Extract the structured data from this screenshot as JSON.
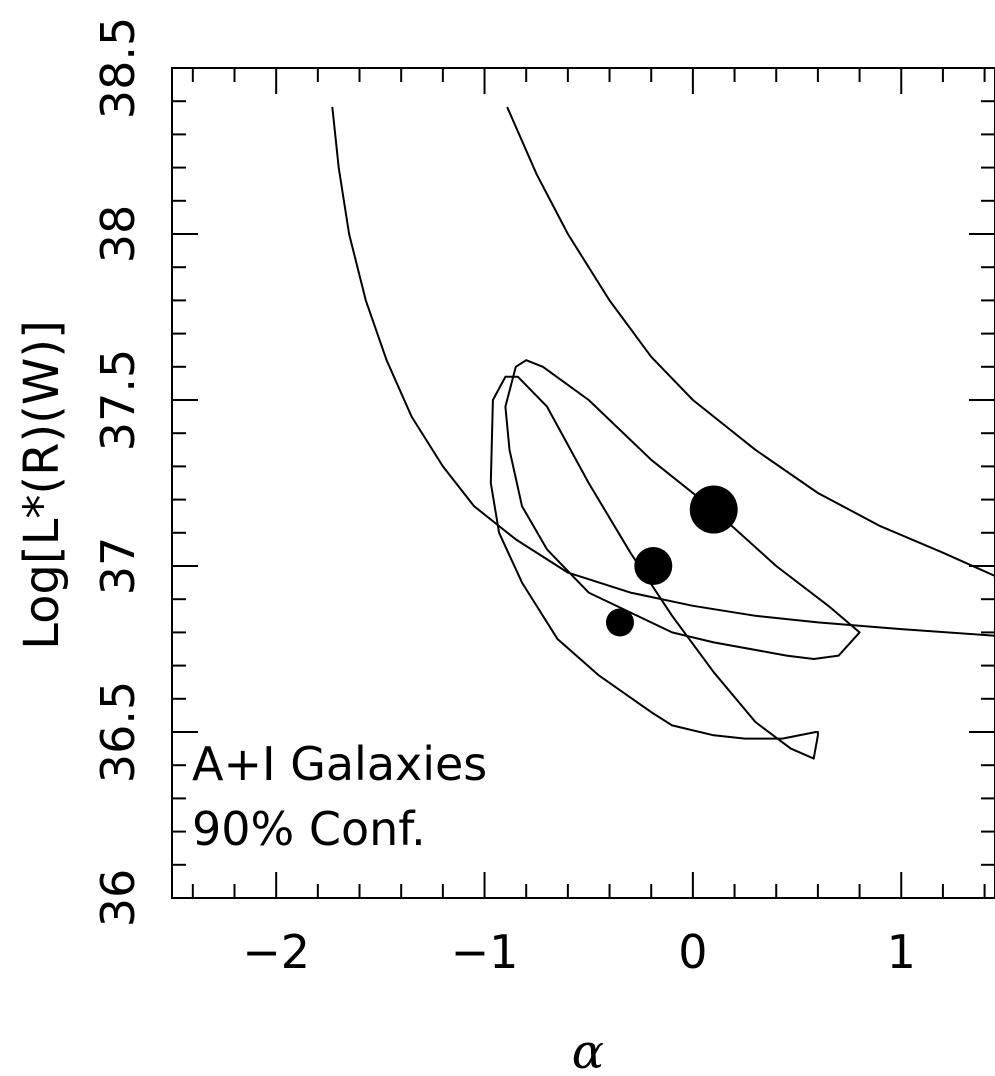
{
  "chart_data": {
    "type": "scatter",
    "title": "",
    "xlabel": "α",
    "ylabel": "Log[L*(R)(W)]",
    "xlim": [
      -2.5,
      1.45
    ],
    "ylim": [
      36.0,
      38.5
    ],
    "x_ticks": [
      "−2",
      "−1",
      "0",
      "1"
    ],
    "y_ticks": [
      "36",
      "36.5",
      "37",
      "37.5",
      "38",
      "38.5"
    ],
    "annotations": [
      "A+I Galaxies",
      "90% Conf."
    ],
    "points": [
      {
        "x": 0.1,
        "y": 37.17,
        "size": "large"
      },
      {
        "x": -0.19,
        "y": 37.0,
        "size": "medium"
      },
      {
        "x": -0.35,
        "y": 36.83,
        "size": "small"
      }
    ],
    "contours": [
      {
        "points": [
          [
            -1.73,
            38.38
          ],
          [
            -1.7,
            38.2
          ],
          [
            -1.65,
            38.0
          ],
          [
            -1.57,
            37.8
          ],
          [
            -1.47,
            37.62
          ],
          [
            -1.35,
            37.45
          ],
          [
            -1.2,
            37.3
          ],
          [
            -1.05,
            37.18
          ],
          [
            -0.85,
            37.08
          ],
          [
            -0.6,
            36.98
          ],
          [
            -0.3,
            36.92
          ],
          [
            0,
            36.88
          ],
          [
            0.3,
            36.85
          ],
          [
            0.6,
            36.83
          ],
          [
            1.0,
            36.81
          ],
          [
            1.45,
            36.79
          ]
        ]
      },
      {
        "points": [
          [
            -0.89,
            38.38
          ],
          [
            -0.75,
            38.18
          ],
          [
            -0.6,
            38.0
          ],
          [
            -0.4,
            37.8
          ],
          [
            -0.2,
            37.63
          ],
          [
            0.0,
            37.5
          ],
          [
            0.3,
            37.35
          ],
          [
            0.6,
            37.22
          ],
          [
            0.9,
            37.12
          ],
          [
            1.2,
            37.04
          ],
          [
            1.45,
            36.97
          ]
        ]
      },
      {
        "points": [
          [
            -0.8,
            37.62
          ],
          [
            -0.72,
            37.6
          ],
          [
            -0.5,
            37.5
          ],
          [
            -0.2,
            37.32
          ],
          [
            0.1,
            37.17
          ],
          [
            0.4,
            37.0
          ],
          [
            0.65,
            36.88
          ],
          [
            0.8,
            36.8
          ],
          [
            0.7,
            36.73
          ],
          [
            0.58,
            36.72
          ],
          [
            0.45,
            36.73
          ],
          [
            0.1,
            36.77
          ],
          [
            -0.1,
            36.8
          ],
          [
            -0.3,
            36.86
          ],
          [
            -0.5,
            36.92
          ],
          [
            -0.7,
            37.05
          ],
          [
            -0.82,
            37.18
          ],
          [
            -0.88,
            37.35
          ],
          [
            -0.9,
            37.48
          ],
          [
            -0.85,
            37.6
          ],
          [
            -0.8,
            37.62
          ]
        ]
      },
      {
        "points": [
          [
            -0.9,
            37.57
          ],
          [
            -0.84,
            37.57
          ],
          [
            -0.7,
            37.48
          ],
          [
            -0.5,
            37.25
          ],
          [
            -0.3,
            37.04
          ],
          [
            -0.1,
            36.85
          ],
          [
            0.1,
            36.68
          ],
          [
            0.3,
            36.53
          ],
          [
            0.47,
            36.45
          ],
          [
            0.58,
            36.42
          ],
          [
            0.6,
            36.49
          ],
          [
            0.6,
            36.5
          ],
          [
            0.59,
            36.5
          ],
          [
            0.43,
            36.48
          ],
          [
            0.25,
            36.48
          ],
          [
            0.1,
            36.49
          ],
          [
            -0.1,
            36.52
          ],
          [
            -0.2,
            36.56
          ],
          [
            -0.45,
            36.67
          ],
          [
            -0.65,
            36.78
          ],
          [
            -0.82,
            36.95
          ],
          [
            -0.93,
            37.1
          ],
          [
            -0.97,
            37.25
          ],
          [
            -0.96,
            37.5
          ],
          [
            -0.9,
            37.57
          ]
        ]
      }
    ],
    "colors": {
      "line": "#000000",
      "marker": "#000000",
      "background": "#ffffff"
    }
  }
}
